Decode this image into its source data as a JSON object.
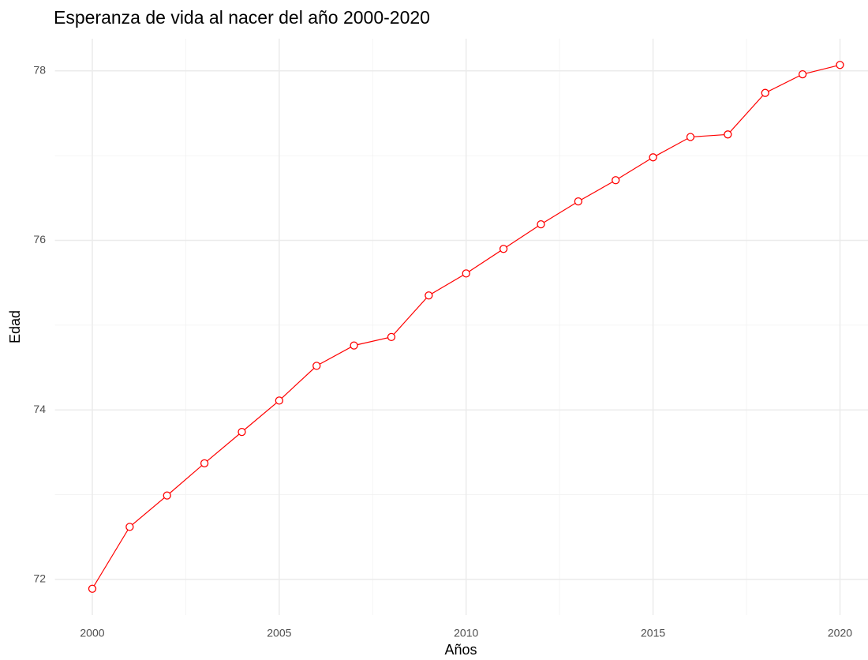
{
  "chart_data": {
    "type": "line",
    "title": "Esperanza de vida al nacer del año 2000-2020",
    "x_label": "Años",
    "y_label": "Edad",
    "x": [
      2000,
      2001,
      2002,
      2003,
      2004,
      2005,
      2006,
      2007,
      2008,
      2009,
      2010,
      2011,
      2012,
      2013,
      2014,
      2015,
      2016,
      2017,
      2018,
      2019,
      2020
    ],
    "series": [
      {
        "name": "Edad",
        "color": "#ff0000",
        "values": [
          71.89,
          72.62,
          72.99,
          73.37,
          73.74,
          74.11,
          74.52,
          74.76,
          74.86,
          75.35,
          75.61,
          75.9,
          76.19,
          76.46,
          76.71,
          76.98,
          77.22,
          77.25,
          77.74,
          77.96,
          78.07
        ]
      }
    ],
    "xlim": [
      1999,
      2020.75
    ],
    "ylim": [
      71.58,
      78.38
    ],
    "xticks": [
      2000,
      2005,
      2010,
      2015,
      2020
    ],
    "yticks": [
      72,
      74,
      76,
      78
    ],
    "x_minor_ticks": [
      2002.5,
      2007.5,
      2012.5,
      2017.5
    ],
    "y_minor_ticks": [
      73,
      75,
      77
    ],
    "grid": true
  }
}
